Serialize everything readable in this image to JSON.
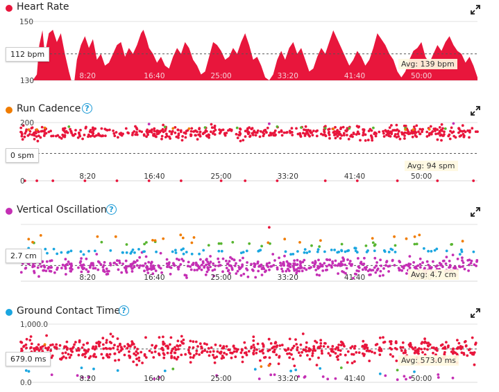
{
  "x_ticks": [
    "8:20",
    "16:40",
    "25:00",
    "33:20",
    "41:40",
    "50:00"
  ],
  "panels": [
    {
      "key": "hr",
      "title": "Heart Rate",
      "has_help": false,
      "dot_color": "#e8163c",
      "y_max_label": "150",
      "y_min_label": "130",
      "current_label": "112 bpm",
      "avg_label": "Avg: 139 bpm"
    },
    {
      "key": "cad",
      "title": "Run Cadence",
      "has_help": true,
      "dot_color": "#f07c00",
      "y_max_label": "200",
      "y_min_label": "0",
      "current_label": "0 spm",
      "avg_label": "Avg: 94 spm"
    },
    {
      "key": "vo",
      "title": "Vertical Oscillation",
      "has_help": true,
      "dot_color": "#c42fb4",
      "y_max_label": "",
      "y_min_label": "",
      "current_label": "2.7 cm",
      "avg_label": "Avg: 4.7 cm"
    },
    {
      "key": "gct",
      "title": "Ground Contact Time",
      "has_help": true,
      "dot_color": "#1aa6e0",
      "y_max_label": "1,000.0",
      "y_min_label": "0.0",
      "current_label": "679.0 ms",
      "avg_label": "Avg: 573.0 ms"
    }
  ],
  "help_glyph": "?",
  "icons": {
    "expand": "expand-icon",
    "help": "help-icon"
  },
  "colors": {
    "red": "#e8163c",
    "orange": "#f07c00",
    "green": "#58b530",
    "blue": "#1aa6e0",
    "purple": "#c42fb4"
  },
  "chart_data": [
    {
      "type": "area",
      "title": "Heart Rate",
      "x_unit": "minutes",
      "x_range": [
        0,
        57
      ],
      "x_tick_labels": [
        "8:20",
        "16:40",
        "25:00",
        "33:20",
        "41:40",
        "50:00"
      ],
      "y_tick_labels": [
        "150",
        "130"
      ],
      "average": 139,
      "series": [
        {
          "values_xy": [
            [
              0,
              128
            ],
            [
              0.5,
              128
            ],
            [
              1,
              112
            ],
            [
              1.5,
              128
            ],
            [
              2,
              132
            ],
            [
              2.3,
              142
            ],
            [
              2.7,
              147
            ],
            [
              3,
              139
            ],
            [
              3.5,
              146
            ],
            [
              4,
              149
            ],
            [
              4.5,
              143
            ],
            [
              5,
              146
            ],
            [
              5.5,
              139
            ],
            [
              6,
              133
            ],
            [
              6.3,
              128
            ],
            [
              6.7,
              128
            ],
            [
              7,
              137
            ],
            [
              7.5,
              142
            ],
            [
              8,
              145
            ],
            [
              8.5,
              141
            ],
            [
              9,
              144
            ],
            [
              9.5,
              137
            ],
            [
              10,
              139
            ],
            [
              10.5,
              135
            ],
            [
              11,
              136
            ],
            [
              11.5,
              139
            ],
            [
              12,
              142
            ],
            [
              12.5,
              143
            ],
            [
              13,
              138
            ],
            [
              13.5,
              141
            ],
            [
              14,
              139
            ],
            [
              14.5,
              142
            ],
            [
              15,
              146
            ],
            [
              15.3,
              150
            ],
            [
              15.7,
              144
            ],
            [
              16,
              141
            ],
            [
              16.5,
              139
            ],
            [
              17,
              136
            ],
            [
              17.5,
              138
            ],
            [
              18,
              135
            ],
            [
              18.5,
              134
            ],
            [
              19,
              138
            ],
            [
              19.5,
              141
            ],
            [
              20,
              139
            ],
            [
              20.5,
              143
            ],
            [
              21,
              141
            ],
            [
              21.5,
              137
            ],
            [
              22,
              135
            ],
            [
              22.5,
              132
            ],
            [
              23,
              133
            ],
            [
              23.5,
              138
            ],
            [
              24,
              143
            ],
            [
              24.5,
              142
            ],
            [
              25,
              140
            ],
            [
              25.5,
              137
            ],
            [
              26,
              138
            ],
            [
              26.5,
              141
            ],
            [
              27,
              139
            ],
            [
              27.5,
              143
            ],
            [
              28,
              146
            ],
            [
              28.5,
              142
            ],
            [
              29,
              137
            ],
            [
              29.5,
              138
            ],
            [
              30,
              135
            ],
            [
              30.5,
              131
            ],
            [
              31,
              128
            ],
            [
              31.5,
              132
            ],
            [
              32,
              137
            ],
            [
              32.5,
              140
            ],
            [
              33,
              137
            ],
            [
              33.5,
              141
            ],
            [
              34,
              143
            ],
            [
              34.5,
              139
            ],
            [
              35,
              141
            ],
            [
              35.5,
              137
            ],
            [
              36,
              133
            ],
            [
              36.5,
              134
            ],
            [
              37,
              138
            ],
            [
              37.5,
              141
            ],
            [
              38,
              139
            ],
            [
              38.5,
              143
            ],
            [
              39,
              147
            ],
            [
              39.5,
              144
            ],
            [
              40,
              141
            ],
            [
              40.5,
              138
            ],
            [
              41,
              135
            ],
            [
              41.5,
              137
            ],
            [
              42,
              140
            ],
            [
              42.5,
              138
            ],
            [
              43,
              135
            ],
            [
              43.5,
              137
            ],
            [
              44,
              141
            ],
            [
              44.5,
              146
            ],
            [
              45,
              144
            ],
            [
              45.5,
              142
            ],
            [
              46,
              139
            ],
            [
              46.5,
              137
            ],
            [
              47,
              133
            ],
            [
              47.5,
              131
            ],
            [
              48,
              133
            ],
            [
              48.5,
              137
            ],
            [
              49,
              140
            ],
            [
              49.5,
              141
            ],
            [
              50,
              143
            ],
            [
              50.5,
              138
            ],
            [
              51,
              136
            ],
            [
              51.5,
              139
            ],
            [
              52,
              142
            ],
            [
              52.5,
              140
            ],
            [
              53,
              143
            ],
            [
              53.5,
              145
            ],
            [
              54,
              142
            ],
            [
              54.5,
              140
            ],
            [
              55,
              139
            ],
            [
              55.5,
              136
            ],
            [
              56,
              138
            ],
            [
              56.5,
              135
            ],
            [
              57,
              131
            ]
          ]
        }
      ]
    },
    {
      "type": "scatter",
      "title": "Run Cadence",
      "x_unit": "minutes",
      "x_range": [
        0,
        57
      ],
      "x_tick_labels": [
        "8:20",
        "16:40",
        "25:00",
        "33:20",
        "41:40",
        "50:00"
      ],
      "y_tick_labels": [
        "200",
        "0"
      ],
      "ylim": [
        0,
        200
      ],
      "average": 94,
      "series": [
        {
          "color": "red",
          "y_center": 165,
          "y_spread": 18,
          "count": 560
        },
        {
          "color": "green",
          "points_xy": [
            [
              6,
              186
            ],
            [
              18,
              185
            ],
            [
              23,
              183
            ],
            [
              27,
              182
            ],
            [
              32,
              186
            ],
            [
              35,
              183
            ],
            [
              38,
              181
            ],
            [
              41,
              180
            ],
            [
              44,
              182
            ],
            [
              48,
              181
            ],
            [
              53,
              179
            ]
          ]
        },
        {
          "color": "orange",
          "points_xy": [
            [
              1,
              176
            ],
            [
              2,
              176
            ],
            [
              3,
              182
            ],
            [
              19,
              180
            ],
            [
              21,
              179
            ],
            [
              39,
              178
            ],
            [
              48,
              176
            ],
            [
              49,
              176
            ],
            [
              51,
              177
            ]
          ]
        },
        {
          "color": "purple",
          "points_xy": [
            [
              16,
              195
            ],
            [
              31,
              196
            ],
            [
              54,
              197
            ]
          ]
        },
        {
          "color": "red",
          "points_xy": [
            [
              0.5,
              0
            ],
            [
              2,
              0
            ],
            [
              4,
              0
            ],
            [
              8,
              0
            ],
            [
              12,
              0
            ],
            [
              16,
              0
            ],
            [
              20,
              0
            ],
            [
              25,
              0
            ],
            [
              28,
              0
            ],
            [
              32,
              0
            ],
            [
              38,
              0
            ],
            [
              42,
              0
            ],
            [
              47,
              0
            ],
            [
              52,
              0
            ],
            [
              56.5,
              0
            ]
          ]
        }
      ]
    },
    {
      "type": "scatter",
      "title": "Vertical Oscillation",
      "x_unit": "minutes",
      "x_range": [
        0,
        57
      ],
      "x_tick_labels": [
        "8:20",
        "16:40",
        "25:00",
        "33:20",
        "41:40",
        "50:00"
      ],
      "average": 4.7,
      "series": [
        {
          "color": "purple",
          "y_center": 4.6,
          "y_spread": 1.0,
          "count": 560
        },
        {
          "color": "blue",
          "y_center": 6.6,
          "y_spread": 0.35,
          "count": 90
        },
        {
          "color": "green",
          "y_center": 7.6,
          "y_spread": 0.4,
          "count": 25
        },
        {
          "color": "orange",
          "y_center": 8.3,
          "y_spread": 0.5,
          "count": 22
        },
        {
          "color": "red",
          "points_xy": [
            [
              31,
              9.8
            ]
          ]
        }
      ]
    },
    {
      "type": "scatter",
      "title": "Ground Contact Time",
      "x_unit": "minutes",
      "x_range": [
        0,
        57
      ],
      "x_tick_labels": [
        "8:20",
        "16:40",
        "25:00",
        "33:20",
        "41:40",
        "50:00"
      ],
      "y_tick_labels": [
        "1,000.0",
        "0.0"
      ],
      "ylim": [
        0,
        1000
      ],
      "average": 573,
      "series": [
        {
          "color": "red",
          "y_center": 560,
          "y_spread": 170,
          "count": 620
        },
        {
          "color": "purple",
          "y_center": 90,
          "y_spread": 60,
          "count": 24
        },
        {
          "color": "blue",
          "y_center": 200,
          "y_spread": 50,
          "count": 12
        },
        {
          "color": "orange",
          "points_xy": [
            [
              3,
              650
            ],
            [
              30,
              270
            ],
            [
              31,
              290
            ]
          ]
        },
        {
          "color": "green",
          "points_xy": [
            [
              19,
              230
            ],
            [
              40,
              250
            ],
            [
              47,
              210
            ]
          ]
        }
      ]
    }
  ]
}
